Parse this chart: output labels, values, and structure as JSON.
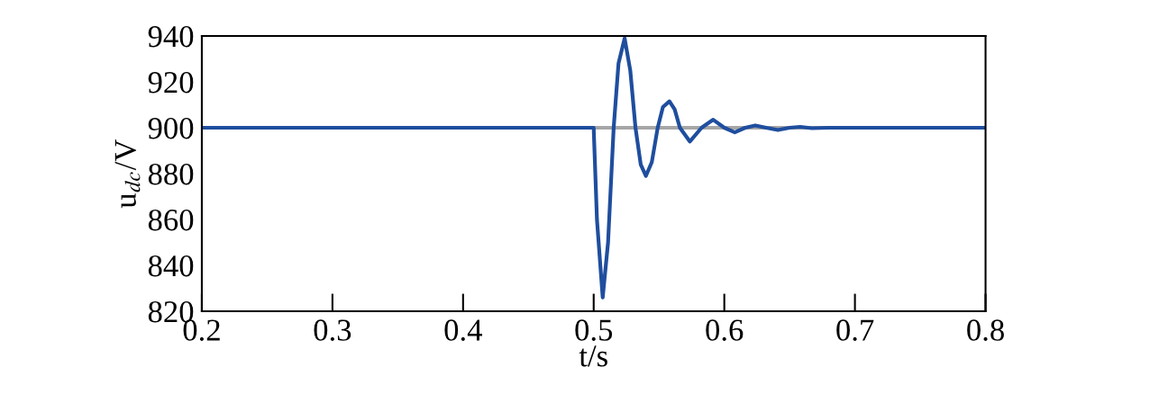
{
  "chart_data": {
    "type": "line",
    "xlabel": "t/s",
    "ylabel": "u$_{dc}$/V",
    "xlim": [
      0.2,
      0.8
    ],
    "xticks": [
      0.2,
      0.3,
      0.4,
      0.5,
      0.6,
      0.7,
      0.8
    ],
    "ylim": [
      820,
      940
    ],
    "yticks": [
      820,
      840,
      860,
      880,
      900,
      920,
      940
    ],
    "grid": false,
    "legend": false,
    "marker": "none",
    "line_style": "solid",
    "ref_lines": [
      {
        "axis": "y",
        "value": 900,
        "color": "#a6a6a6",
        "line_style": "solid"
      }
    ],
    "series": [
      {
        "color": "#1f4e9e",
        "x": [
          0.2,
          0.5,
          0.5003,
          0.5025,
          0.5069,
          0.511,
          0.5153,
          0.519,
          0.5237,
          0.528,
          0.532,
          0.536,
          0.54,
          0.5445,
          0.549,
          0.553,
          0.558,
          0.562,
          0.566,
          0.5736,
          0.5826,
          0.5915,
          0.6,
          0.608,
          0.616,
          0.6237,
          0.632,
          0.641,
          0.65,
          0.658,
          0.667,
          0.68,
          0.8
        ],
        "values": [
          900,
          900,
          895,
          860,
          826,
          850,
          900,
          928,
          939,
          925,
          900,
          884,
          879,
          885,
          900,
          909,
          911.5,
          908,
          900,
          894,
          900,
          903.5,
          900,
          898,
          900,
          901,
          900,
          899,
          900,
          900.4,
          899.8,
          900,
          900
        ]
      }
    ]
  }
}
